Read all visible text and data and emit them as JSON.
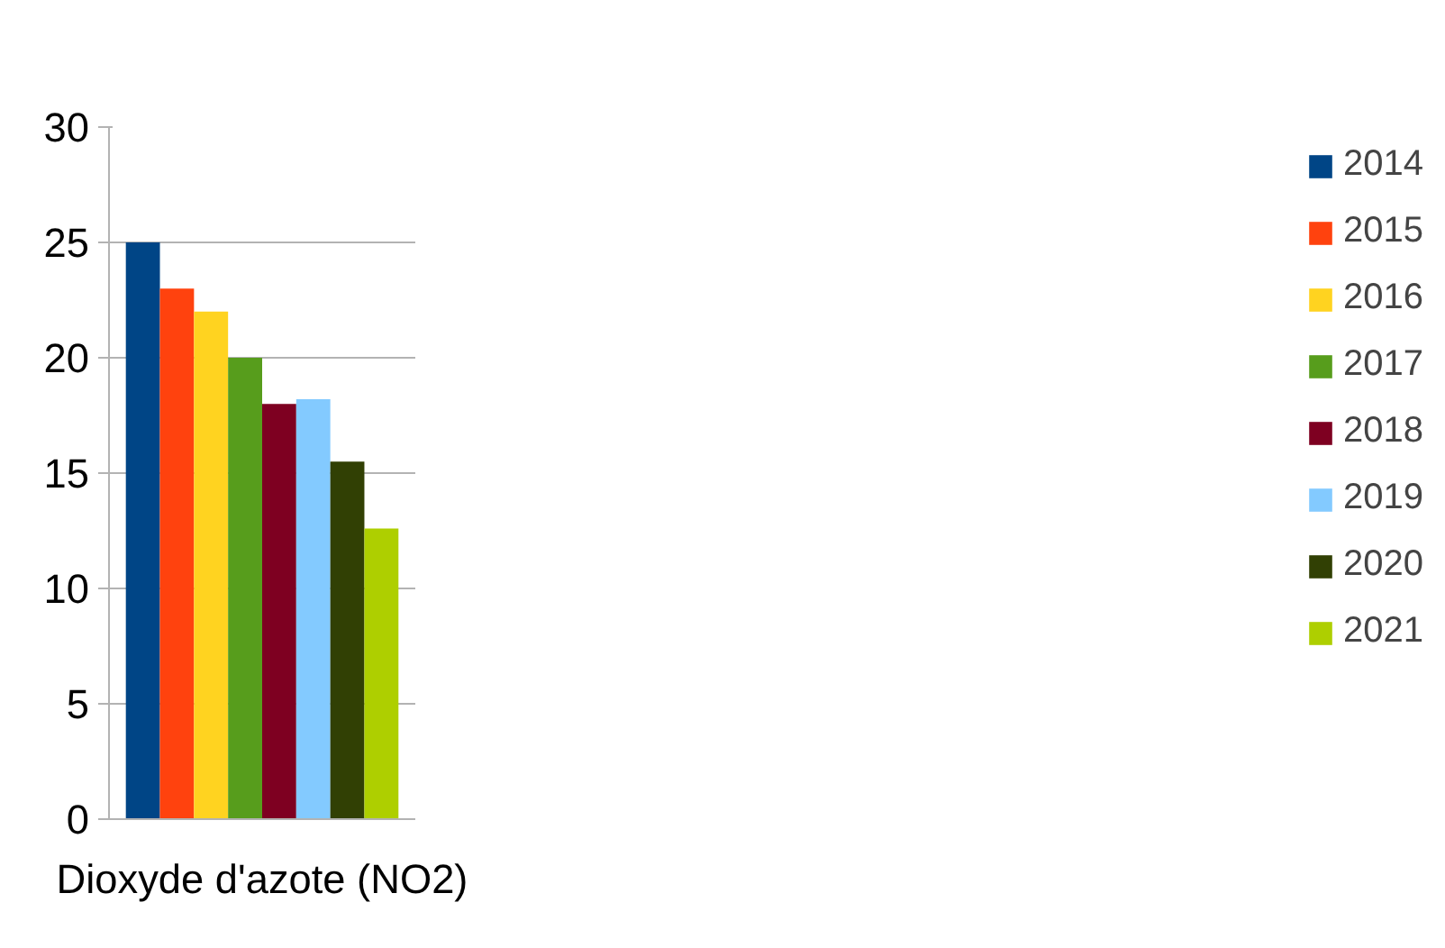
{
  "chart_data": {
    "type": "bar",
    "categories": [
      "Dioxyde d'azote (NO2)"
    ],
    "series": [
      {
        "name": "2014",
        "color": "#004586",
        "values": [
          25
        ]
      },
      {
        "name": "2015",
        "color": "#ff420e",
        "values": [
          23
        ]
      },
      {
        "name": "2016",
        "color": "#ffd320",
        "values": [
          22
        ]
      },
      {
        "name": "2017",
        "color": "#579d1c",
        "values": [
          20
        ]
      },
      {
        "name": "2018",
        "color": "#7e0021",
        "values": [
          18
        ]
      },
      {
        "name": "2019",
        "color": "#83caff",
        "values": [
          18.2
        ]
      },
      {
        "name": "2020",
        "color": "#314004",
        "values": [
          15.5
        ]
      },
      {
        "name": "2021",
        "color": "#aecf00",
        "values": [
          12.6
        ]
      }
    ],
    "ylim": [
      0,
      30
    ],
    "yticks": [
      0,
      5,
      10,
      15,
      20,
      25,
      30
    ],
    "grid": "y",
    "legend": "right"
  }
}
